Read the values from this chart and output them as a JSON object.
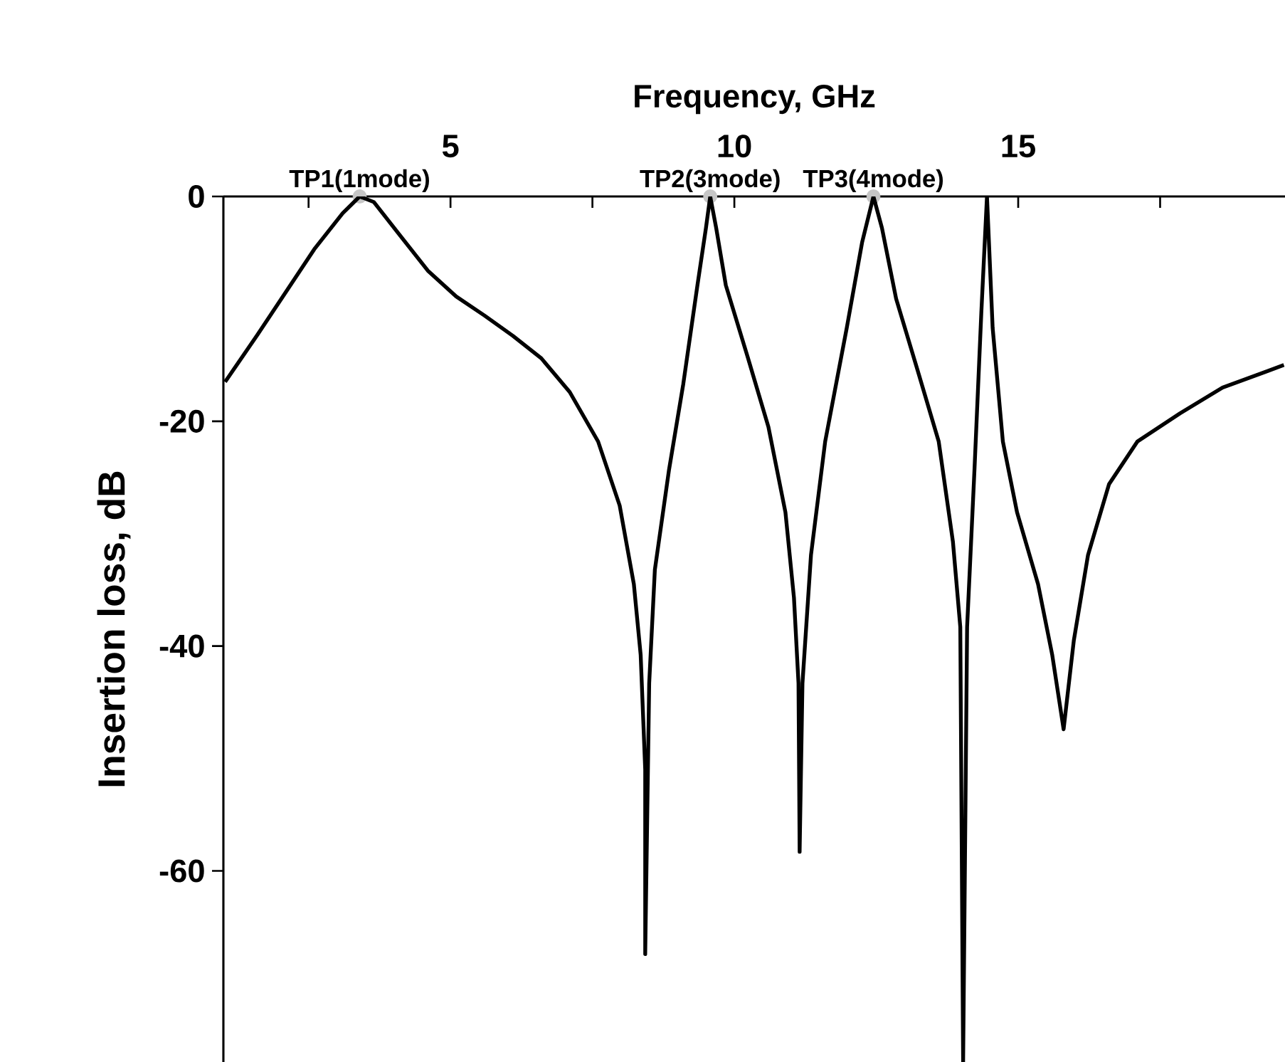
{
  "chart_data": {
    "type": "line",
    "xlabel": "Frequency, GHz",
    "ylabel": "Insertion loss, dB",
    "xlim": [
      1,
      19.7
    ],
    "ylim": [
      -77,
      0
    ],
    "xticks": [
      {
        "value": 2.5,
        "label": null
      },
      5,
      {
        "value": 7.5,
        "label": null
      },
      10,
      {
        "value": 12.5,
        "label": null
      },
      15,
      {
        "value": 17.5,
        "label": null
      }
    ],
    "yticks": [
      -60,
      -40,
      -20,
      0
    ],
    "x": [
      1.03,
      1.6,
      2.1,
      2.6,
      3.1,
      3.4,
      3.65,
      4.1,
      4.6,
      5.1,
      5.6,
      6.1,
      6.6,
      7.1,
      7.6,
      7.98,
      8.23,
      8.35,
      8.43,
      8.43,
      8.5,
      8.6,
      8.85,
      9.1,
      9.35,
      9.5,
      9.575,
      9.68,
      9.85,
      10.23,
      10.6,
      10.9,
      11.05,
      11.13,
      11.15,
      11.2,
      11.35,
      11.6,
      11.98,
      12.25,
      12.45,
      12.6,
      12.85,
      13.23,
      13.6,
      13.85,
      13.98,
      14.03,
      14.1,
      14.23,
      14.35,
      14.45,
      14.55,
      14.73,
      14.98,
      15.35,
      15.6,
      15.8,
      15.98,
      16.23,
      16.6,
      17.1,
      17.85,
      18.6,
      19.68
    ],
    "series": [
      {
        "type": "scatter",
        "marker": "circle",
        "color": "#c6c6c6",
        "x": [
          3.4,
          9.575,
          12.45
        ],
        "values": [
          0,
          0,
          0
        ]
      },
      {
        "color": "#000000",
        "values": [
          -16.5,
          -12.3,
          -8.5,
          -4.7,
          -1.5,
          0,
          -0.5,
          -3.4,
          -6.6,
          -8.9,
          -10.6,
          -12.4,
          -14.4,
          -17.4,
          -21.8,
          -27.5,
          -34.5,
          -40.8,
          -51,
          -67.4,
          -43.3,
          -33.2,
          -24.3,
          -16.7,
          -7.9,
          -2.8,
          0,
          -2.8,
          -7.9,
          -14.2,
          -20.5,
          -28.1,
          -35.7,
          -43.3,
          -58.3,
          -43.3,
          -31.9,
          -21.8,
          -11.7,
          -4.1,
          0,
          -2.8,
          -9.1,
          -15.5,
          -21.8,
          -30.7,
          -38.3,
          -77,
          -38.3,
          -24.3,
          -10.4,
          0,
          -11.7,
          -21.8,
          -28.1,
          -34.5,
          -40.8,
          -47.4,
          -39.5,
          -31.9,
          -25.6,
          -21.8,
          -19.3,
          -17,
          -15
        ]
      }
    ],
    "annotations": [
      {
        "text": "TP1(1mode)",
        "x": 3.4,
        "y": 0
      },
      {
        "text": "TP2(3mode)",
        "x": 9.575,
        "y": 0
      },
      {
        "text": "TP3(4mode)",
        "x": 12.45,
        "y": 0
      }
    ],
    "grid": false,
    "line_style": "solid"
  }
}
